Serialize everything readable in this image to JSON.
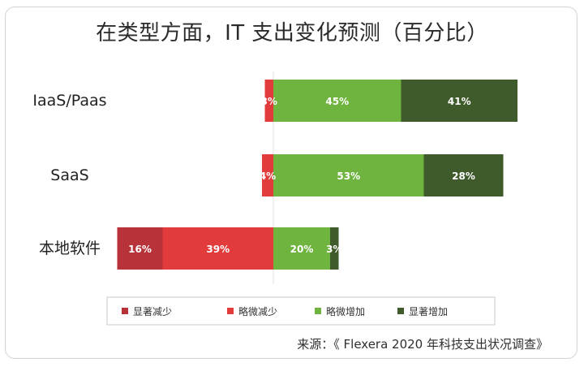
{
  "page": {
    "title": "在类型方面，IT 支出变化预测（百分比）",
    "source": "来源：《 Flexera 2020 年科技支出状况调查》"
  },
  "chart_data": {
    "type": "bar",
    "title": "在类型方面，IT 支出变化预测（百分比）",
    "categories": [
      "IaaS/Paas",
      "SaaS",
      "本地软件"
    ],
    "series": [
      {
        "name": "显著减少",
        "values": [
          0,
          0,
          16
        ],
        "color": "#b8323a"
      },
      {
        "name": "略微减少",
        "values": [
          3,
          4,
          39
        ],
        "color": "#e13b3b"
      },
      {
        "name": "略微增加",
        "values": [
          45,
          53,
          20
        ],
        "color": "#6fb43f"
      },
      {
        "name": "显著增加",
        "values": [
          41,
          28,
          3
        ],
        "color": "#3f5a2b"
      }
    ],
    "data_labels": [
      [
        "",
        "3%",
        "45%",
        "41%"
      ],
      [
        "",
        "4%",
        "53%",
        "28%"
      ],
      [
        "16%",
        "39%",
        "20%",
        "3%"
      ]
    ],
    "xlim": [
      -55,
      90
    ],
    "legend_position": "bottom",
    "grid": false
  },
  "colors": {
    "legend_border": "#c9c9c9",
    "zero_line": "#e2e2e2"
  }
}
